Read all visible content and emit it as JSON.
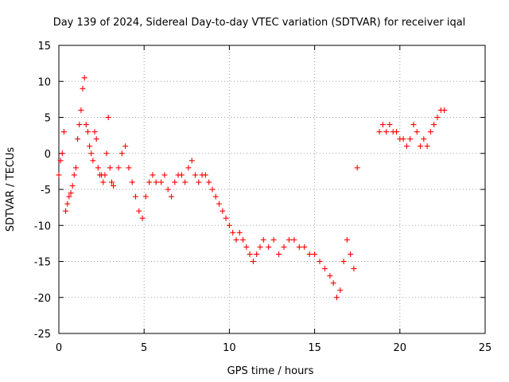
{
  "chart_data": {
    "type": "scatter",
    "title": "Day 139 of 2024, Sidereal Day-to-day VTEC variation (SDTVAR) for receiver iqal",
    "xlabel": "GPS time / hours",
    "ylabel": "SDTVAR / TECUs",
    "xlim": [
      0,
      25
    ],
    "ylim": [
      -25,
      15
    ],
    "xticks": [
      0,
      5,
      10,
      15,
      20,
      25
    ],
    "yticks": [
      -25,
      -20,
      -15,
      -10,
      -5,
      0,
      5,
      10,
      15
    ],
    "grid": true,
    "marker": "+",
    "series": [
      {
        "name": "SDTVAR",
        "color": "#ff0000",
        "x": [
          0.0,
          0.1,
          0.2,
          0.3,
          0.4,
          0.5,
          0.6,
          0.7,
          0.8,
          0.9,
          1.0,
          1.1,
          1.2,
          1.3,
          1.4,
          1.5,
          1.6,
          1.7,
          1.8,
          1.9,
          2.0,
          2.1,
          2.2,
          2.3,
          2.4,
          2.5,
          2.6,
          2.7,
          2.8,
          2.9,
          3.0,
          3.1,
          3.2,
          3.5,
          3.7,
          3.9,
          4.1,
          4.3,
          4.5,
          4.7,
          4.9,
          5.1,
          5.3,
          5.5,
          5.7,
          6.0,
          6.2,
          6.4,
          6.6,
          6.8,
          7.0,
          7.2,
          7.4,
          7.6,
          7.8,
          8.0,
          8.2,
          8.4,
          8.6,
          8.8,
          9.0,
          9.2,
          9.4,
          9.6,
          9.8,
          10.0,
          10.2,
          10.4,
          10.6,
          10.8,
          11.0,
          11.2,
          11.4,
          11.6,
          11.8,
          12.0,
          12.3,
          12.6,
          12.9,
          13.2,
          13.5,
          13.8,
          14.1,
          14.4,
          14.7,
          15.0,
          15.3,
          15.6,
          15.9,
          16.1,
          16.3,
          16.5,
          16.7,
          16.9,
          17.1,
          17.3,
          17.5,
          18.8,
          19.0,
          19.2,
          19.4,
          19.6,
          19.8,
          20.0,
          20.2,
          20.4,
          20.6,
          20.8,
          21.0,
          21.2,
          21.4,
          21.6,
          21.8,
          22.0,
          22.2,
          22.4,
          22.6
        ],
        "values": [
          -3,
          -1,
          0,
          3,
          -8,
          -7,
          -6,
          -5.5,
          -4.5,
          -3,
          -2,
          2,
          4,
          6,
          9,
          10.5,
          4,
          3,
          1,
          0,
          -1,
          3,
          2,
          -2,
          -3,
          -3,
          -4,
          -3,
          0,
          5,
          -2,
          -4,
          -4.5,
          -2,
          0,
          1,
          -2,
          -4,
          -6,
          -8,
          -9,
          -6,
          -4,
          -3,
          -4,
          -4,
          -3,
          -5,
          -6,
          -4,
          -3,
          -3,
          -4,
          -2,
          -1,
          -3,
          -4,
          -3,
          -3,
          -4,
          -5,
          -6,
          -7,
          -8,
          -9,
          -10,
          -11,
          -12,
          -11,
          -12,
          -13,
          -14,
          -15,
          -14,
          -13,
          -12,
          -13,
          -12,
          -14,
          -13,
          -12,
          -12,
          -13,
          -13,
          -14,
          -14,
          -15,
          -16,
          -17,
          -18,
          -20,
          -19,
          -15,
          -12,
          -14,
          -16,
          -2,
          3,
          4,
          3,
          4,
          3,
          3,
          2,
          2,
          1,
          2,
          4,
          3,
          1,
          2,
          1,
          3,
          4,
          5,
          6,
          6
        ]
      }
    ]
  }
}
